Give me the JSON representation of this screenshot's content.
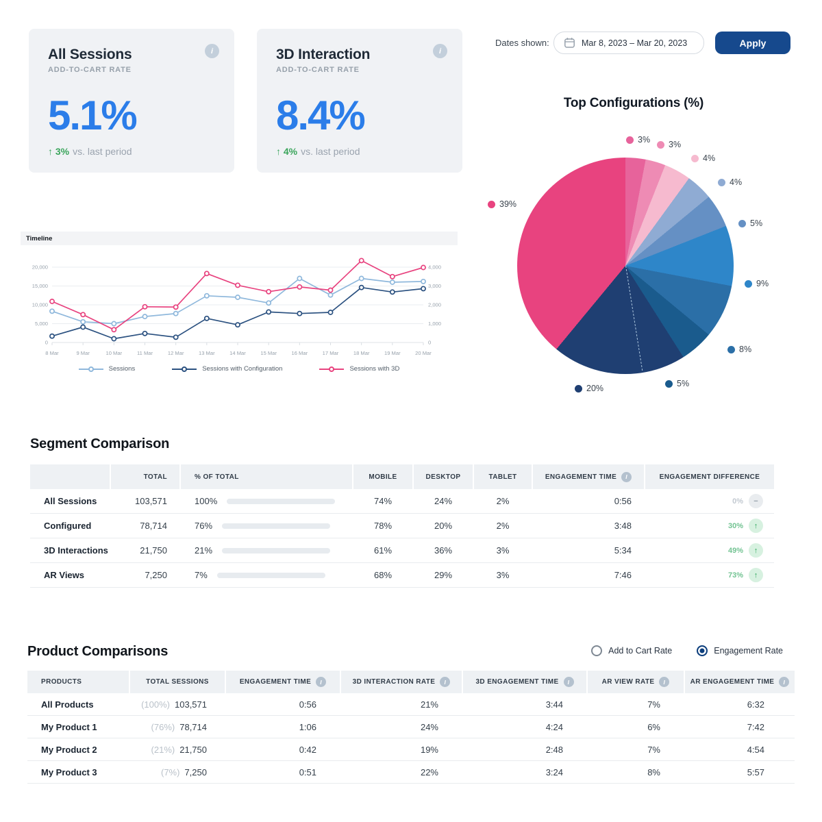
{
  "header": {
    "kpis": [
      {
        "title": "All Sessions",
        "subtitle": "ADD-TO-CART RATE",
        "value": "5.1%",
        "delta_arrow": "↑",
        "delta": "3%",
        "delta_suffix": "vs. last period"
      },
      {
        "title": "3D Interaction",
        "subtitle": "ADD-TO-CART RATE",
        "value": "8.4%",
        "delta_arrow": "↑",
        "delta": "4%",
        "delta_suffix": "vs. last period"
      }
    ],
    "dates_label": "Dates shown:",
    "date_range": "Mar 8, 2023 – Mar 20, 2023",
    "apply_label": "Apply",
    "info_icon_glyph": "i"
  },
  "colors": {
    "accent_blue": "#2979e8",
    "kpi_value_blue": "#2b7de9",
    "positive_green": "#3ba55c",
    "navy_button": "#16498d",
    "brand_pink": "#e8437f",
    "brand_navy": "#1f3f72"
  },
  "chart_data": [
    {
      "type": "pie",
      "title": "Top Configurations (%)",
      "labels": [
        "3%",
        "3%",
        "4%",
        "4%",
        "5%",
        "9%",
        "8%",
        "5%",
        "20%",
        "39%"
      ],
      "values": [
        3,
        3,
        4,
        4,
        5,
        9,
        8,
        5,
        20,
        39
      ],
      "colors": [
        "#e7639b",
        "#ee8bb4",
        "#f6bacf",
        "#8fabd3",
        "#6590c4",
        "#2e86c9",
        "#2b6fa7",
        "#1a5b8d",
        "#1f3f72",
        "#e8437f"
      ],
      "start_angle_deg": 0,
      "direction": "clockwise",
      "legend_position": "around"
    },
    {
      "type": "line",
      "title": "Timeline",
      "x": [
        "8 Mar",
        "9 Mar",
        "10 Mar",
        "11 Mar",
        "12 Mar",
        "13 Mar",
        "14 Mar",
        "15 Mar",
        "16 Mar",
        "17 Mar",
        "18 Mar",
        "19 Mar",
        "20 Mar"
      ],
      "series": [
        {
          "name": "Sessions",
          "axis": "left",
          "color": "#8fb8dc",
          "values": [
            8300,
            5500,
            5000,
            6900,
            7700,
            12400,
            12000,
            10500,
            17000,
            12600,
            17000,
            16000,
            16200
          ]
        },
        {
          "name": "Sessions with Configuration",
          "axis": "left",
          "color": "#2b5180",
          "values": [
            1700,
            4100,
            1000,
            2400,
            1400,
            6400,
            4700,
            8100,
            7700,
            8000,
            14600,
            13400,
            14300
          ]
        },
        {
          "name": "Sessions with 3D",
          "axis": "right",
          "color": "#e8437f",
          "values": [
            2180,
            1480,
            680,
            1900,
            1880,
            3660,
            3040,
            2700,
            2950,
            2780,
            4350,
            3500,
            3980
          ]
        }
      ],
      "left_axis": {
        "min": 0,
        "max": 20000,
        "tick_values": [
          0,
          5000,
          10000,
          15000,
          20000
        ],
        "tick_labels": [
          "0",
          "5,000",
          "10,000",
          "15,000",
          "20,000"
        ]
      },
      "right_axis": {
        "min": 0,
        "max": 4000,
        "tick_values": [
          0,
          1000,
          2000,
          3000,
          4000
        ],
        "tick_labels": [
          "0",
          "1,000",
          "2,000",
          "3,000",
          "4,000"
        ]
      },
      "grid": true,
      "legend_position": "bottom"
    }
  ],
  "segment_table": {
    "title": "Segment Comparison",
    "columns": [
      "",
      "TOTAL",
      "% OF TOTAL",
      "MOBILE",
      "DESKTOP",
      "TABLET",
      "ENGAGEMENT TIME",
      "ENGAGEMENT DIFFERENCE"
    ],
    "info_column_indexes": [
      6
    ],
    "bar_color": "#2979e8",
    "rows": [
      {
        "label": "All Sessions",
        "total": "103,571",
        "pct": "100%",
        "pct_value": 100,
        "mobile": "74%",
        "desktop": "24%",
        "tablet": "2%",
        "engagement_time": "0:56",
        "diff": "0%",
        "diff_dir": "flat"
      },
      {
        "label": "Configured",
        "total": "78,714",
        "pct": "76%",
        "pct_value": 76,
        "mobile": "78%",
        "desktop": "20%",
        "tablet": "2%",
        "engagement_time": "3:48",
        "diff": "30%",
        "diff_dir": "up"
      },
      {
        "label": "3D Interactions",
        "total": "21,750",
        "pct": "21%",
        "pct_value": 21,
        "mobile": "61%",
        "desktop": "36%",
        "tablet": "3%",
        "engagement_time": "5:34",
        "diff": "49%",
        "diff_dir": "up"
      },
      {
        "label": "AR Views",
        "total": "7,250",
        "pct": "7%",
        "pct_value": 7,
        "mobile": "68%",
        "desktop": "29%",
        "tablet": "3%",
        "engagement_time": "7:46",
        "diff": "73%",
        "diff_dir": "up"
      }
    ]
  },
  "product_table": {
    "title": "Product Comparisons",
    "radio_options": [
      {
        "label": "Add to Cart Rate",
        "selected": false
      },
      {
        "label": "Engagement Rate",
        "selected": true
      }
    ],
    "columns": [
      "PRODUCTS",
      "TOTAL SESSIONS",
      "ENGAGEMENT TIME",
      "3D INTERACTION RATE",
      "3D ENGAGEMENT TIME",
      "AR VIEW RATE",
      "AR ENGAGEMENT TIME"
    ],
    "info_column_indexes": [
      2,
      3,
      4,
      5,
      6
    ],
    "rows": [
      {
        "product": "All Products",
        "share": "(100%)",
        "sessions": "103,571",
        "engagement_time": "0:56",
        "interaction_rate_3d": "21%",
        "engagement_time_3d": "3:44",
        "ar_view_rate": "7%",
        "ar_engagement_time": "6:32"
      },
      {
        "product": "My Product 1",
        "share": "(76%)",
        "sessions": "78,714",
        "engagement_time": "1:06",
        "interaction_rate_3d": "24%",
        "engagement_time_3d": "4:24",
        "ar_view_rate": "6%",
        "ar_engagement_time": "7:42"
      },
      {
        "product": "My Product 2",
        "share": "(21%)",
        "sessions": "21,750",
        "engagement_time": "0:42",
        "interaction_rate_3d": "19%",
        "engagement_time_3d": "2:48",
        "ar_view_rate": "7%",
        "ar_engagement_time": "4:54"
      },
      {
        "product": "My Product 3",
        "share": "(7%)",
        "sessions": "7,250",
        "engagement_time": "0:51",
        "interaction_rate_3d": "22%",
        "engagement_time_3d": "3:24",
        "ar_view_rate": "8%",
        "ar_engagement_time": "5:57"
      }
    ]
  }
}
